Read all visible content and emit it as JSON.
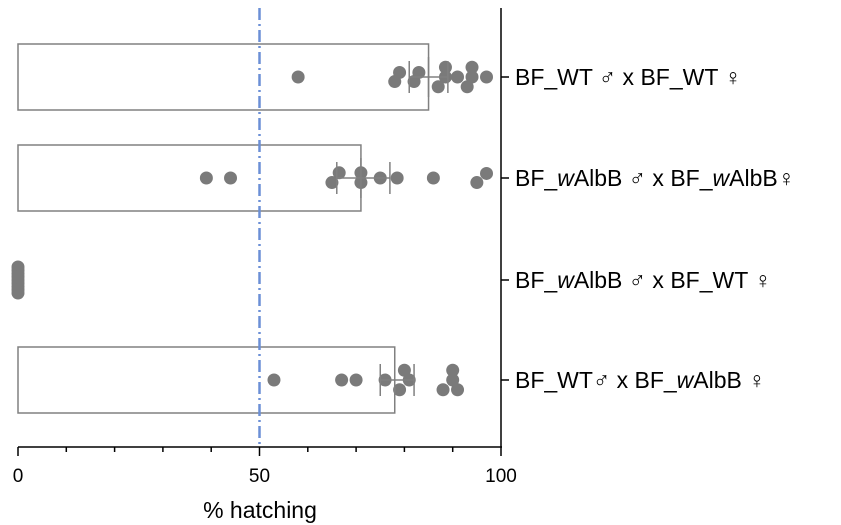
{
  "chart_data": {
    "type": "bar",
    "orientation": "horizontal",
    "xlabel": "% hatching",
    "xlim": [
      0,
      100
    ],
    "x_ticks": [
      "0",
      "50",
      "100"
    ],
    "reference_line": {
      "value": 50,
      "style": "dash-dot",
      "color": "#6b8fd6"
    },
    "bar_color": "#ffffff",
    "bar_edge_color": "#808080",
    "point_color": "#7a7a7a",
    "categories": [
      {
        "label_parts": [
          {
            "text": "BF_WT ",
            "italic": false
          },
          {
            "text": "♂",
            "italic": false
          },
          {
            "text": " x BF_WT ",
            "italic": false
          },
          {
            "text": "♀",
            "italic": false
          }
        ],
        "mean": 85,
        "sem": [
          81,
          89
        ],
        "points": [
          {
            "x": 58,
            "y": 0.0
          },
          {
            "x": 78,
            "y": 0.35
          },
          {
            "x": 79,
            "y": -0.35
          },
          {
            "x": 82,
            "y": 0.35
          },
          {
            "x": 83,
            "y": -0.35
          },
          {
            "x": 87,
            "y": 0.75
          },
          {
            "x": 88.5,
            "y": -0.75
          },
          {
            "x": 88.5,
            "y": 0.0
          },
          {
            "x": 91,
            "y": 0.0
          },
          {
            "x": 93,
            "y": 0.75
          },
          {
            "x": 94,
            "y": -0.75
          },
          {
            "x": 94,
            "y": 0.0
          },
          {
            "x": 97,
            "y": 0.0
          }
        ]
      },
      {
        "label_parts": [
          {
            "text": "BF_",
            "italic": false
          },
          {
            "text": "w",
            "italic": true
          },
          {
            "text": "AlbB ",
            "italic": false
          },
          {
            "text": "♂",
            "italic": false
          },
          {
            "text": " x BF_",
            "italic": false
          },
          {
            "text": "w",
            "italic": true
          },
          {
            "text": "AlbB",
            "italic": false
          },
          {
            "text": "♀",
            "italic": false
          }
        ],
        "mean": 71,
        "sem": [
          66,
          77
        ],
        "points": [
          {
            "x": 39,
            "y": 0.0
          },
          {
            "x": 44,
            "y": 0.0
          },
          {
            "x": 65,
            "y": 0.35
          },
          {
            "x": 66.5,
            "y": -0.4
          },
          {
            "x": 71,
            "y": -0.4
          },
          {
            "x": 71,
            "y": 0.35
          },
          {
            "x": 75,
            "y": 0.0
          },
          {
            "x": 78.5,
            "y": 0.0
          },
          {
            "x": 86,
            "y": 0.0
          },
          {
            "x": 95,
            "y": 0.35
          },
          {
            "x": 97,
            "y": -0.35
          }
        ]
      },
      {
        "label_parts": [
          {
            "text": "BF_",
            "italic": false
          },
          {
            "text": "w",
            "italic": true
          },
          {
            "text": "AlbB ",
            "italic": false
          },
          {
            "text": "♂",
            "italic": false
          },
          {
            "text": " x BF_WT ",
            "italic": false
          },
          {
            "text": "♀",
            "italic": false
          }
        ],
        "mean": 0,
        "sem": [
          0,
          0
        ],
        "points": [
          {
            "x": 0,
            "y": -1.0
          },
          {
            "x": 0,
            "y": -0.75
          },
          {
            "x": 0,
            "y": -0.5
          },
          {
            "x": 0,
            "y": -0.25
          },
          {
            "x": 0,
            "y": 0.0
          },
          {
            "x": 0,
            "y": 0.25
          },
          {
            "x": 0,
            "y": 0.5
          },
          {
            "x": 0,
            "y": 0.75
          },
          {
            "x": 0,
            "y": 1.0
          }
        ]
      },
      {
        "label_parts": [
          {
            "text": "BF_WT",
            "italic": false
          },
          {
            "text": "♂",
            "italic": false
          },
          {
            "text": " x BF_",
            "italic": false
          },
          {
            "text": "w",
            "italic": true
          },
          {
            "text": "AlbB  ",
            "italic": false
          },
          {
            "text": "♀",
            "italic": false
          }
        ],
        "mean": 78,
        "sem": [
          75,
          82
        ],
        "points": [
          {
            "x": 53,
            "y": 0.0
          },
          {
            "x": 67,
            "y": 0.0
          },
          {
            "x": 70,
            "y": 0.0
          },
          {
            "x": 76,
            "y": 0.0
          },
          {
            "x": 79,
            "y": 0.75
          },
          {
            "x": 80,
            "y": -0.75
          },
          {
            "x": 81,
            "y": 0.0
          },
          {
            "x": 88,
            "y": 0.75
          },
          {
            "x": 90,
            "y": -0.75
          },
          {
            "x": 90,
            "y": 0.0
          },
          {
            "x": 91,
            "y": 0.75
          }
        ]
      }
    ]
  }
}
